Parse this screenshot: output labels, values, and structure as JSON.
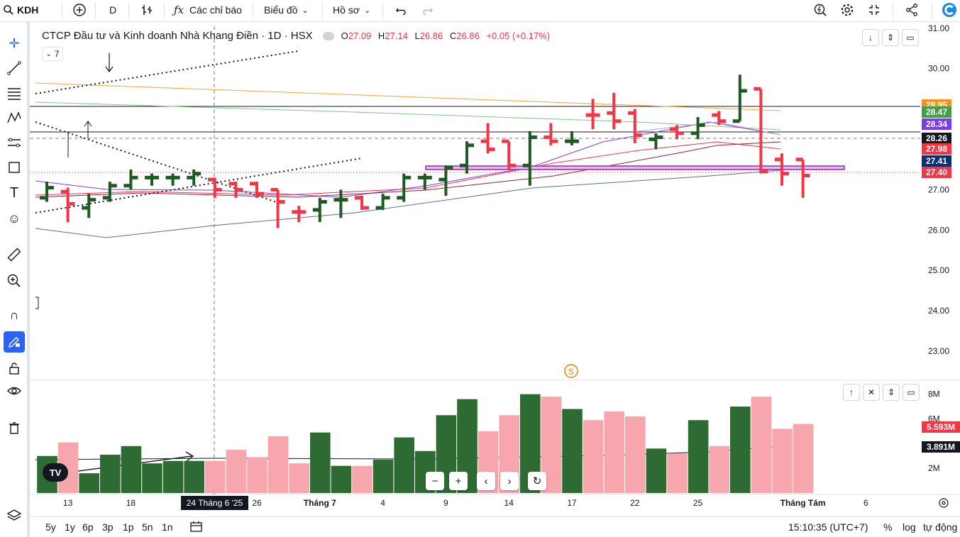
{
  "toolbar": {
    "symbol": "KDH",
    "interval": "D",
    "indicators_label": "Các chỉ báo",
    "chart_type_label": "Biểu đồ",
    "profile_label": "Hồ sơ"
  },
  "legend": {
    "name": "CTCP Đầu tư và Kinh doanh Nhà Khang Điền · 1D · HSX",
    "o_lbl": "O",
    "o": "27.09",
    "h_lbl": "H",
    "h": "27.14",
    "l_lbl": "L",
    "l": "26.86",
    "c_lbl": "C",
    "c": "26.86",
    "change": "+0.05 (+0.17%)",
    "collapsed_count": "7"
  },
  "price_badges": [
    {
      "value": "28.95",
      "color": "#f7931a",
      "y": 28.95
    },
    {
      "value": "28.47",
      "color": "#43a047",
      "y": 28.47
    },
    {
      "value": "28.34",
      "color": "#7c3aed",
      "y": 28.34
    },
    {
      "value": "28.26",
      "color": "#131722",
      "y": 28.26
    },
    {
      "value": "27.98",
      "color": "#f23645",
      "y": 27.98
    },
    {
      "value": "27.41",
      "color": "#0d2e78",
      "y": 27.41
    },
    {
      "value": "27.40",
      "color": "#f23645",
      "y": 27.4
    }
  ],
  "volume_badges": [
    {
      "value": "5.593M",
      "color": "#f23645",
      "y": 5.593
    },
    {
      "value": "3.891M",
      "color": "#131722",
      "y": 3.891
    }
  ],
  "x_axis": {
    "labels": [
      {
        "text": "13",
        "i": 1
      },
      {
        "text": "18",
        "i": 4
      },
      {
        "text": "26",
        "i": 10
      },
      {
        "text": "Tháng 7",
        "i": 13
      },
      {
        "text": "4",
        "i": 16
      },
      {
        "text": "9",
        "i": 19
      },
      {
        "text": "14",
        "i": 22
      },
      {
        "text": "17",
        "i": 25
      },
      {
        "text": "22",
        "i": 28
      },
      {
        "text": "25",
        "i": 31
      },
      {
        "text": "Tháng Tám",
        "i": 36
      },
      {
        "text": "6",
        "i": 39
      }
    ],
    "crosshair_label": "24 Tháng 6 '25"
  },
  "bottom": {
    "ranges": [
      "5y",
      "1y",
      "6p",
      "3p",
      "1p",
      "5n",
      "1n"
    ],
    "time": "15:10:35 (UTC+7)",
    "percent": "%",
    "log": "log",
    "auto": "tự động"
  },
  "tv_logo": "TV",
  "dividend_marker": "S",
  "chart_data": {
    "type": "bar",
    "subtype": "ohlc",
    "symbol": "KDH",
    "interval": "1D",
    "y_axis": {
      "ticks": [
        23.0,
        24.0,
        25.0,
        26.0,
        27.0,
        28.0,
        29.0,
        30.0,
        31.0
      ],
      "tick_labels": [
        "23.00",
        "24.00",
        "25.00",
        "26.00",
        "27.00",
        "",
        "",
        "30.00",
        "31.00"
      ],
      "ylim": [
        22.35,
        31.05
      ]
    },
    "volume_axis": {
      "ticks": [
        2,
        4,
        6,
        8
      ],
      "tick_labels": [
        "2M",
        "",
        "6M",
        "8M"
      ],
      "ylim": [
        0,
        8.9
      ]
    },
    "ohlc": [
      {
        "o": 26.8,
        "h": 27.2,
        "l": 26.7,
        "c": 27.05,
        "v": 3.0,
        "up": true
      },
      {
        "o": 26.95,
        "h": 27.05,
        "l": 26.2,
        "c": 26.65,
        "v": 4.1,
        "up": false
      },
      {
        "o": 26.55,
        "h": 26.9,
        "l": 26.3,
        "c": 26.75,
        "v": 1.6,
        "up": true
      },
      {
        "o": 26.8,
        "h": 27.2,
        "l": 26.7,
        "c": 27.1,
        "v": 3.1,
        "up": true
      },
      {
        "o": 27.1,
        "h": 27.5,
        "l": 27.0,
        "c": 27.3,
        "v": 3.8,
        "up": true
      },
      {
        "o": 27.3,
        "h": 27.4,
        "l": 27.1,
        "c": 27.3,
        "v": 2.4,
        "up": true
      },
      {
        "o": 27.3,
        "h": 27.4,
        "l": 27.1,
        "c": 27.3,
        "v": 2.6,
        "up": true
      },
      {
        "o": 27.3,
        "h": 27.5,
        "l": 27.1,
        "c": 27.4,
        "v": 2.6,
        "up": true
      },
      {
        "o": 27.25,
        "h": 27.3,
        "l": 26.8,
        "c": 27.0,
        "v": 2.6,
        "up": false
      },
      {
        "o": 27.15,
        "h": 27.2,
        "l": 26.8,
        "c": 27.0,
        "v": 3.5,
        "up": false
      },
      {
        "o": 27.15,
        "h": 27.2,
        "l": 26.8,
        "c": 26.9,
        "v": 2.9,
        "up": false
      },
      {
        "o": 27.0,
        "h": 27.0,
        "l": 26.05,
        "c": 26.7,
        "v": 4.6,
        "up": false
      },
      {
        "o": 26.45,
        "h": 26.6,
        "l": 26.2,
        "c": 26.45,
        "v": 2.4,
        "up": false
      },
      {
        "o": 26.5,
        "h": 26.8,
        "l": 26.2,
        "c": 26.7,
        "v": 4.9,
        "up": true
      },
      {
        "o": 26.75,
        "h": 27.0,
        "l": 26.3,
        "c": 26.75,
        "v": 2.2,
        "up": true
      },
      {
        "o": 26.8,
        "h": 26.85,
        "l": 26.5,
        "c": 26.55,
        "v": 2.2,
        "up": false
      },
      {
        "o": 26.55,
        "h": 26.9,
        "l": 26.5,
        "c": 26.8,
        "v": 2.7,
        "up": true
      },
      {
        "o": 26.8,
        "h": 27.4,
        "l": 26.7,
        "c": 27.3,
        "v": 4.5,
        "up": true
      },
      {
        "o": 27.3,
        "h": 27.4,
        "l": 27.0,
        "c": 27.3,
        "v": 3.4,
        "up": true
      },
      {
        "o": 27.25,
        "h": 27.6,
        "l": 26.85,
        "c": 27.55,
        "v": 6.3,
        "up": true
      },
      {
        "o": 27.6,
        "h": 28.2,
        "l": 27.4,
        "c": 28.1,
        "v": 7.6,
        "up": true
      },
      {
        "o": 28.2,
        "h": 28.65,
        "l": 27.9,
        "c": 28.0,
        "v": 5.0,
        "up": false
      },
      {
        "o": 28.2,
        "h": 28.2,
        "l": 27.5,
        "c": 27.6,
        "v": 6.3,
        "up": false
      },
      {
        "o": 27.6,
        "h": 28.45,
        "l": 27.1,
        "c": 28.3,
        "v": 8.0,
        "up": true
      },
      {
        "o": 28.3,
        "h": 28.65,
        "l": 28.1,
        "c": 28.2,
        "v": 7.8,
        "up": false
      },
      {
        "o": 28.2,
        "h": 28.45,
        "l": 28.1,
        "c": 28.2,
        "v": 6.8,
        "up": true
      },
      {
        "o": 28.85,
        "h": 29.25,
        "l": 28.5,
        "c": 28.85,
        "v": 5.9,
        "up": false
      },
      {
        "o": 28.9,
        "h": 29.4,
        "l": 28.5,
        "c": 28.7,
        "v": 6.6,
        "up": false
      },
      {
        "o": 28.9,
        "h": 29.0,
        "l": 28.15,
        "c": 28.35,
        "v": 6.2,
        "up": false
      },
      {
        "o": 28.25,
        "h": 28.4,
        "l": 28.0,
        "c": 28.3,
        "v": 3.6,
        "up": true
      },
      {
        "o": 28.5,
        "h": 28.6,
        "l": 28.25,
        "c": 28.4,
        "v": 3.2,
        "up": false
      },
      {
        "o": 28.4,
        "h": 28.8,
        "l": 28.25,
        "c": 28.6,
        "v": 5.9,
        "up": true
      },
      {
        "o": 28.85,
        "h": 28.95,
        "l": 28.6,
        "c": 28.7,
        "v": 3.8,
        "up": false
      },
      {
        "o": 28.7,
        "h": 29.85,
        "l": 28.7,
        "c": 29.45,
        "v": 7.0,
        "up": true
      },
      {
        "o": 29.5,
        "h": 29.5,
        "l": 27.4,
        "c": 27.45,
        "v": 7.8,
        "up": false
      },
      {
        "o": 27.75,
        "h": 27.9,
        "l": 27.1,
        "c": 27.4,
        "v": 5.2,
        "up": false
      },
      {
        "o": 27.75,
        "h": 27.75,
        "l": 26.8,
        "c": 27.35,
        "v": 5.593,
        "up": false
      }
    ]
  }
}
